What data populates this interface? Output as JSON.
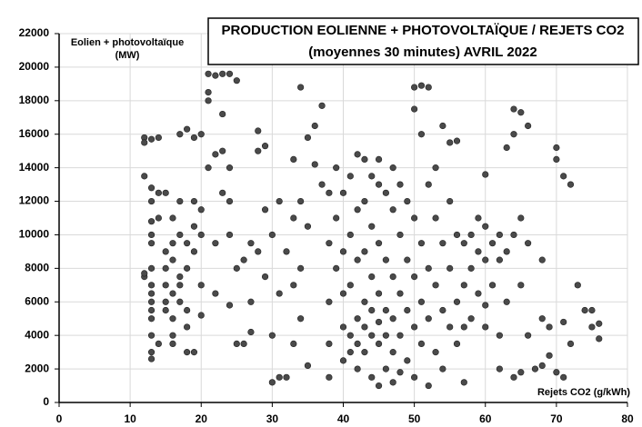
{
  "chart_data": {
    "type": "scatter",
    "title": "PRODUCTION EOLIENNE + PHOTOVOLTAÏQUE / REJETS CO2",
    "subtitle": "(moyennes 30 minutes) AVRIL 2022",
    "ylabel": [
      "Eolien + photovoltaïque",
      "(MW)"
    ],
    "xlabel": "Rejets CO2 (g/kWh)",
    "color": "#4a4a4a",
    "grid": true,
    "xlim": [
      0,
      80
    ],
    "xticks": [
      0,
      10,
      20,
      30,
      40,
      50,
      60,
      70,
      80
    ],
    "ylim": [
      0,
      22000
    ],
    "yticks": [
      0,
      2000,
      4000,
      6000,
      8000,
      10000,
      12000,
      14000,
      16000,
      18000,
      20000,
      22000
    ],
    "x": [
      12,
      12,
      12,
      12,
      12,
      13,
      13,
      13,
      13,
      13,
      13,
      13,
      13,
      13,
      13,
      13,
      13,
      13,
      13,
      14,
      14,
      14,
      14,
      15,
      15,
      15,
      15,
      15,
      16,
      16,
      16,
      16,
      16,
      16,
      17,
      17,
      17,
      17,
      17,
      17,
      18,
      18,
      18,
      18,
      18,
      18,
      19,
      19,
      19,
      19,
      19,
      20,
      20,
      20,
      20,
      21,
      21,
      21,
      22,
      23,
      24,
      25,
      23,
      21,
      22,
      23,
      24,
      22,
      23,
      24,
      25,
      22,
      24,
      25,
      26,
      27,
      28,
      28,
      29,
      27,
      28,
      29,
      30,
      30,
      31,
      31,
      32,
      32,
      33,
      33,
      33,
      34,
      34,
      34,
      34,
      35,
      35,
      36,
      37,
      37,
      38,
      38,
      38,
      38,
      39,
      39,
      39,
      40,
      40,
      40,
      40,
      40,
      41,
      41,
      41,
      41,
      41,
      42,
      42,
      42,
      42,
      42,
      42,
      43,
      43,
      43,
      43,
      43,
      43,
      44,
      44,
      44,
      44,
      44,
      44,
      45,
      45,
      45,
      45,
      45,
      45,
      46,
      46,
      46,
      46,
      46,
      47,
      47,
      47,
      47,
      47,
      48,
      48,
      48,
      48,
      48,
      49,
      49,
      49,
      49,
      50,
      50,
      50,
      50,
      50,
      50,
      51,
      51,
      51,
      51,
      51,
      52,
      52,
      52,
      52,
      52,
      53,
      53,
      53,
      54,
      54,
      54,
      54,
      55,
      55,
      55,
      55,
      56,
      56,
      56,
      56,
      57,
      57,
      57,
      58,
      58,
      58,
      59,
      59,
      59,
      60,
      60,
      60,
      60,
      61,
      61,
      62,
      62,
      62,
      63,
      63,
      63,
      64,
      64,
      64,
      64,
      65,
      65,
      65,
      65,
      66,
      66,
      66,
      67,
      68,
      68,
      68,
      69,
      69,
      70,
      70,
      70,
      71,
      71,
      71,
      72,
      72,
      73,
      74,
      75,
      75,
      76,
      76,
      60,
      62,
      57,
      53,
      30,
      31,
      27,
      26,
      35,
      36,
      45,
      47,
      15,
      13,
      16,
      20,
      24,
      29,
      33,
      38
    ],
    "values": [
      13500,
      15800,
      15500,
      7500,
      7700,
      2600,
      3000,
      4000,
      5000,
      5500,
      6000,
      6500,
      7000,
      8000,
      9500,
      10000,
      12000,
      12800,
      15700,
      11000,
      12500,
      15800,
      3500,
      7000,
      8000,
      9000,
      6000,
      5500,
      4000,
      5000,
      6500,
      8500,
      9500,
      11000,
      6000,
      7000,
      7500,
      10000,
      12000,
      16000,
      3000,
      4500,
      5500,
      8000,
      9500,
      16300,
      3000,
      9000,
      10500,
      12000,
      15800,
      7000,
      10000,
      11500,
      16000,
      19600,
      18500,
      18000,
      19500,
      19600,
      19600,
      19200,
      17200,
      14000,
      14800,
      15000,
      14000,
      9500,
      12500,
      10000,
      8000,
      6500,
      5800,
      3500,
      3500,
      9500,
      15000,
      16200,
      15300,
      4200,
      9000,
      7500,
      4000,
      1200,
      1500,
      6500,
      1500,
      9000,
      11000,
      7000,
      3500,
      18800,
      12000,
      8000,
      5000,
      2200,
      10500,
      16500,
      17700,
      13000,
      9500,
      6000,
      3500,
      1500,
      14000,
      8000,
      11000,
      12500,
      9000,
      6500,
      4500,
      2500,
      13500,
      10000,
      7000,
      4000,
      3000,
      14800,
      11500,
      8500,
      5000,
      3500,
      2000,
      14500,
      12000,
      9000,
      6000,
      4500,
      3000,
      13500,
      10500,
      7500,
      5500,
      4000,
      1500,
      13000,
      9500,
      6500,
      4800,
      3500,
      1000,
      12500,
      8500,
      5500,
      4000,
      2000,
      11500,
      7500,
      5000,
      3000,
      1200,
      13000,
      10000,
      6500,
      4000,
      1800,
      12000,
      8500,
      5500,
      2500,
      18800,
      17500,
      11000,
      7500,
      4500,
      1500,
      18900,
      16000,
      9500,
      6000,
      3500,
      18800,
      13000,
      8000,
      5000,
      1000,
      11000,
      7000,
      3000,
      16500,
      9500,
      5500,
      2000,
      15500,
      12000,
      8000,
      4500,
      15600,
      10000,
      6000,
      3500,
      9500,
      7000,
      1200,
      10000,
      8000,
      5000,
      11000,
      9000,
      6500,
      13600,
      10500,
      8500,
      4500,
      9500,
      7000,
      10000,
      8500,
      4000,
      15200,
      9000,
      6000,
      17500,
      16000,
      10000,
      1500,
      17300,
      11000,
      7000,
      1800,
      16500,
      9500,
      4000,
      2000,
      8500,
      5000,
      2200,
      4500,
      2800,
      15200,
      14500,
      1800,
      13500,
      4800,
      1500,
      13000,
      3500,
      7000,
      5500,
      5500,
      4500,
      4700,
      3800,
      5800,
      2000,
      4500,
      14000,
      10000,
      12000,
      6000,
      8500,
      15800,
      14200,
      14500,
      14000,
      12500,
      10800,
      3500,
      5200,
      12000,
      11500,
      14500,
      12500
    ]
  }
}
